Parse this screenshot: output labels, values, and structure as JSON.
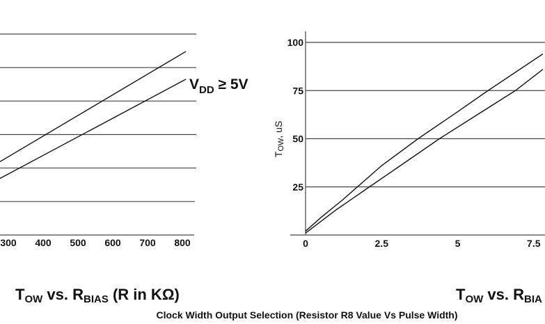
{
  "chart_data": [
    {
      "type": "line",
      "xlabel": "",
      "ylabel": "",
      "x_ticks": [
        "300",
        "400",
        "500",
        "600",
        "700",
        "800"
      ],
      "x_tick_values": [
        300,
        400,
        500,
        600,
        700,
        800
      ],
      "xlim": [
        276,
        830
      ],
      "ylim": [
        0,
        6
      ],
      "y_gridlines": [
        1,
        2,
        3,
        4,
        5,
        6
      ],
      "grid": true,
      "annotation": {
        "main": "V",
        "sub": "DD",
        "rest": " ≥ 5V"
      },
      "title": {
        "t": "T",
        "t_sub": "OW",
        "mid": " vs. R",
        "r_sub": "BIAS",
        "rest": " (R in KΩ)"
      },
      "series": [
        {
          "x": [
            276,
            810
          ],
          "y": [
            2.19,
            5.48
          ]
        },
        {
          "x": [
            276,
            810
          ],
          "y": [
            1.69,
            4.65
          ]
        }
      ],
      "line_color": "#111111"
    },
    {
      "type": "line",
      "xlabel": "",
      "ylabel": {
        "main": "T",
        "sub": "OW",
        "rest": ", uS"
      },
      "x_ticks": [
        "0",
        "2.5",
        "5",
        "7.5"
      ],
      "x_tick_values": [
        0,
        2.5,
        5,
        7.5
      ],
      "y_ticks": [
        "25",
        "50",
        "75",
        "100"
      ],
      "y_tick_values": [
        25,
        50,
        75,
        100
      ],
      "xlim": [
        0,
        7.8
      ],
      "ylim": [
        0,
        100
      ],
      "grid": true,
      "title": {
        "t": "T",
        "t_sub": "OW",
        "mid": " vs. R",
        "r_sub": "BIA"
      },
      "series": [
        {
          "x": [
            0,
            0.5,
            1.2,
            2.5,
            3.7,
            5,
            6,
            7.8
          ],
          "y": [
            2,
            9,
            18,
            36,
            50,
            64,
            75,
            94
          ]
        },
        {
          "x": [
            0,
            1,
            2.1,
            3.3,
            4.4,
            5.6,
            6.9,
            7.8
          ],
          "y": [
            1,
            13,
            25,
            38,
            50,
            62,
            75,
            86
          ]
        }
      ],
      "line_color": "#111111"
    }
  ],
  "caption": "Clock Width Output Selection (Resistor R8 Value Vs Pulse Width)"
}
